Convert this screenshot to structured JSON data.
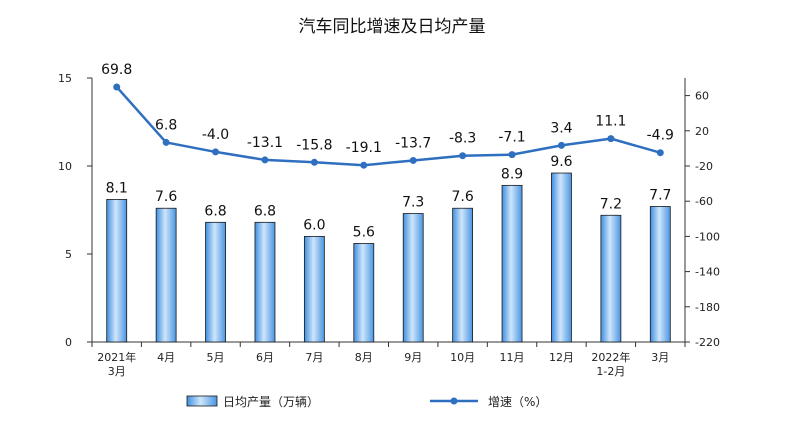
{
  "chart_data": {
    "type": "bar",
    "title": "汽车同比增速及日均产量",
    "categories": [
      [
        "2021年",
        "3月"
      ],
      [
        "4月"
      ],
      [
        "5月"
      ],
      [
        "6月"
      ],
      [
        "7月"
      ],
      [
        "8月"
      ],
      [
        "9月"
      ],
      [
        "10月"
      ],
      [
        "11月"
      ],
      [
        "12月"
      ],
      [
        "2022年",
        "1-2月"
      ],
      [
        "3月"
      ]
    ],
    "series": [
      {
        "name": "日均产量（万辆）",
        "type": "bar",
        "axis": "left",
        "values": [
          8.1,
          7.6,
          6.8,
          6.8,
          6.0,
          5.6,
          7.3,
          7.6,
          8.9,
          9.6,
          7.2,
          7.7
        ],
        "labels": [
          "8.1",
          "7.6",
          "6.8",
          "6.8",
          "6.0",
          "5.6",
          "7.3",
          "7.6",
          "8.9",
          "9.6",
          "7.2",
          "7.7"
        ]
      },
      {
        "name": "增速（%）",
        "type": "line",
        "axis": "right",
        "values": [
          69.8,
          6.8,
          -4.0,
          -13.1,
          -15.8,
          -19.1,
          -13.7,
          -8.3,
          -7.1,
          3.4,
          11.1,
          -4.9
        ],
        "labels": [
          "69.8",
          "6.8",
          "-4.0",
          "-13.1",
          "-15.8",
          "-19.1",
          "-13.7",
          "-8.3",
          "-7.1",
          "3.4",
          "11.1",
          "-4.9"
        ]
      }
    ],
    "y_left": {
      "ylim": [
        0,
        15
      ],
      "ticks": [
        0,
        5,
        10,
        15
      ]
    },
    "y_right": {
      "ylim": [
        -220,
        80
      ],
      "ticks": [
        60,
        20,
        -20,
        -60,
        -100,
        -140,
        -180,
        -220
      ]
    },
    "grid": false,
    "legend_position": "bottom",
    "colors": {
      "bar_fill_light": "#cfe6fb",
      "bar_fill_dark": "#3f8fe0",
      "bar_stroke": "#1a1a1a",
      "line": "#2f6fc0",
      "axis": "#333333"
    }
  }
}
